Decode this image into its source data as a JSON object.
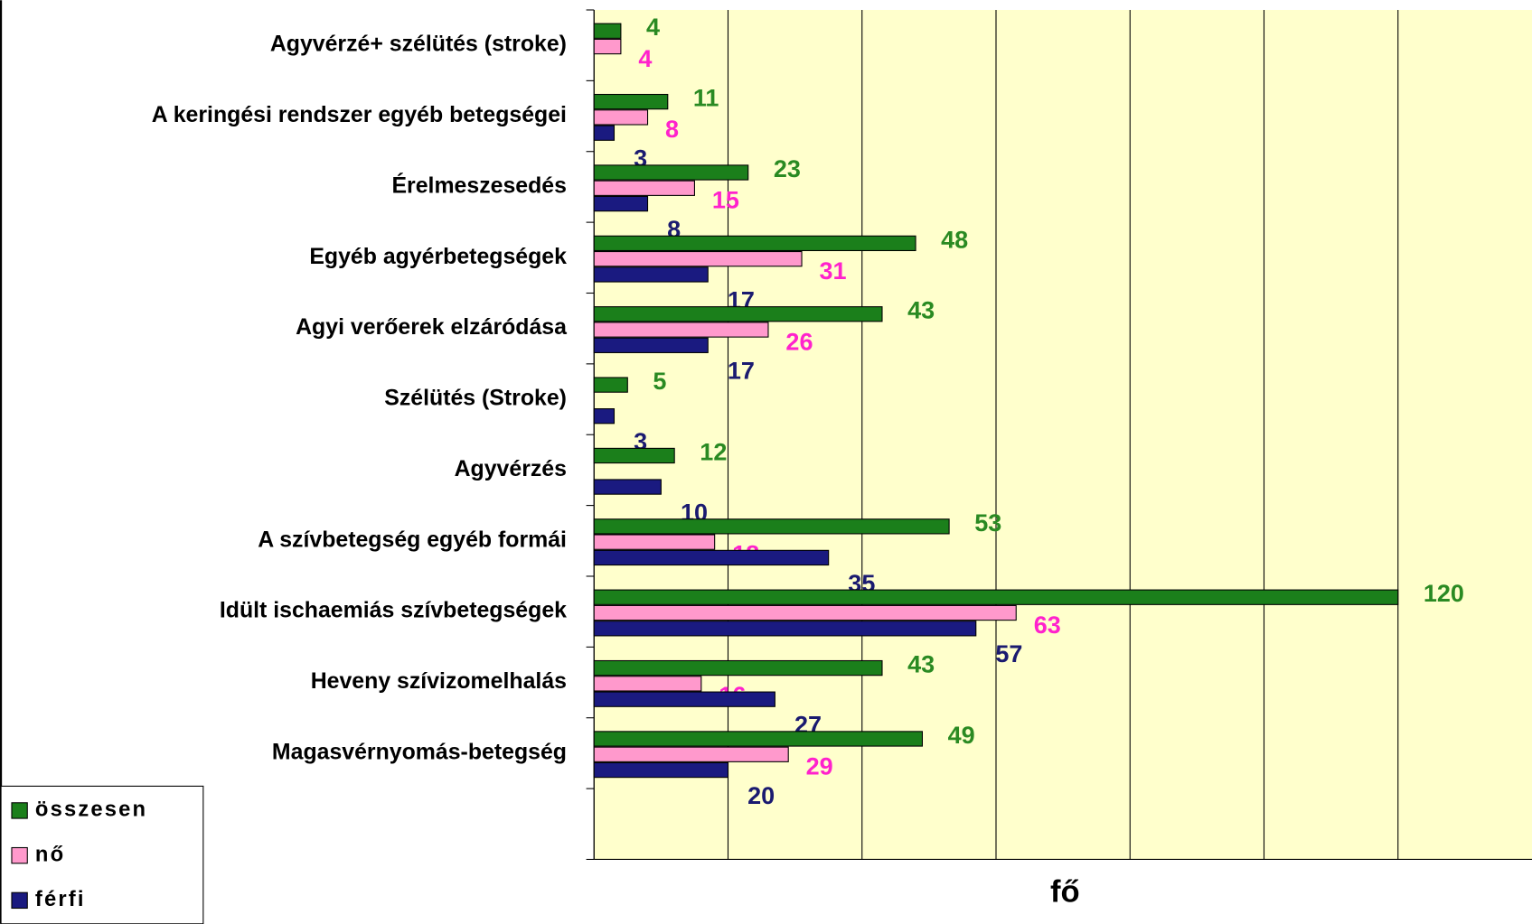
{
  "chart_data": {
    "type": "bar",
    "orientation": "horizontal",
    "x_label": "fő",
    "categories": [
      "Agyvérzé+ szélütés (stroke)",
      "A keringési rendszer egyéb betegségei",
      "Érelmeszesedés",
      "Egyéb agyérbetegségek",
      "Agyi verőerek elzáródása",
      "Szélütés (Stroke)",
      "Agyvérzés",
      "A szívbetegség egyéb formái",
      "Idült ischaemiás szívbetegségek",
      "Heveny szívizomelhalás",
      "Magasvérnyomás-betegség",
      null
    ],
    "series": [
      {
        "name": "összesen",
        "color": "#1b7f1b",
        "label_color": "#2a8a22",
        "values": [
          4,
          11,
          23,
          48,
          43,
          5,
          12,
          53,
          120,
          43,
          49,
          null
        ]
      },
      {
        "name": "nő",
        "color": "#ff99cc",
        "label_color": "#ff22cc",
        "values": [
          4,
          8,
          15,
          31,
          26,
          null,
          null,
          18,
          63,
          16,
          29,
          null
        ]
      },
      {
        "name": "férfi",
        "color": "#1a1a80",
        "label_color": "#1a1a70",
        "values": [
          null,
          3,
          8,
          17,
          17,
          3,
          10,
          35,
          57,
          27,
          20,
          null
        ]
      }
    ],
    "xlim": [
      0,
      140
    ],
    "xticks": [
      0,
      20,
      40,
      60,
      80,
      100,
      120
    ],
    "grid": true,
    "plot_background": "#ffffcc",
    "legend": "lower left"
  }
}
